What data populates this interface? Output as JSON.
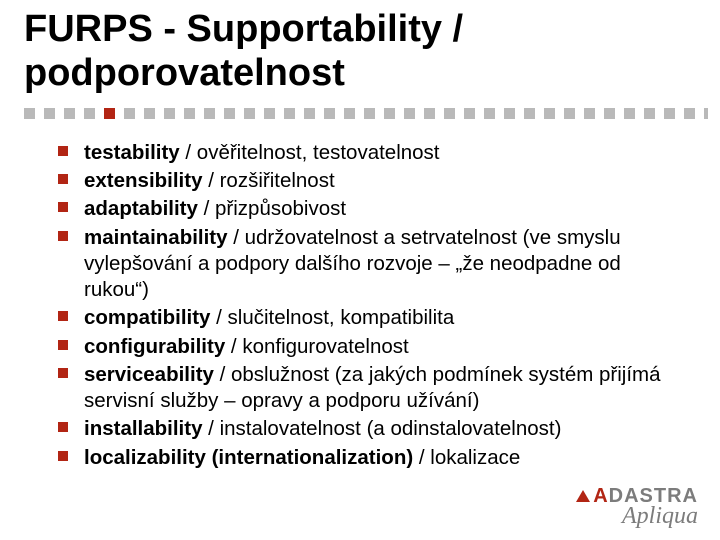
{
  "colors": {
    "accent": "#b22514",
    "dot_gray": "#b9b9b9",
    "text": "#000000",
    "logo_gray": "#7c7c7c"
  },
  "title": "FURPS - Supportability / podporovatelnost",
  "dots": {
    "total": 35,
    "accent_indices": [
      4
    ]
  },
  "items": [
    {
      "bold": "testability",
      "rest": " / ověřitelnost, testovatelnost"
    },
    {
      "bold": "extensibility",
      "rest": " / rozšiřitelnost"
    },
    {
      "bold": "adaptability",
      "rest": " / přizpůsobivost"
    },
    {
      "bold": "maintainability",
      "rest": " / udržovatelnost a setrvatelnost (ve smyslu vylepšování a podpory dalšího rozvoje – „že neodpadne od rukou“)"
    },
    {
      "bold": "compatibility",
      "rest": " / slučitelnost, kompatibilita"
    },
    {
      "bold": "configurability",
      "rest": " / konfigurovatelnost"
    },
    {
      "bold": "serviceability",
      "rest": " / obslužnost (za jakých podmínek systém přijímá servisní služby – opravy a podporu užívání)"
    },
    {
      "bold": "installability",
      "rest": " / instalovatelnost (a odinstalovatelnost)"
    },
    {
      "bold": "localizability (internationalization)",
      "rest": " / lokalizace"
    }
  ],
  "logo": {
    "top": "DASTRA",
    "top_prefix": "A",
    "bottom": "Apliqua"
  }
}
